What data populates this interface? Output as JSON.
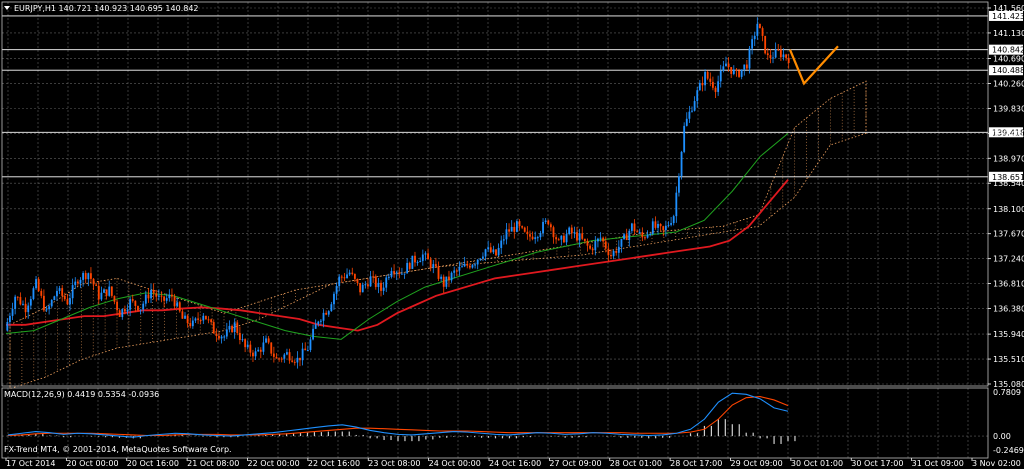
{
  "header": {
    "symbol_line": "EURJPY,H1  140.721 140.923 140.695 140.842",
    "macd_line": "MACD(12,26,9) 0.4419 0.5354 -0.0936",
    "copyright": "FX-Trend MT4, © 2001-2014, MetaQuotes Software Corp."
  },
  "colors": {
    "background": "#000000",
    "grid": "#606060",
    "bull": "#1E90FF",
    "bear": "#FF4500",
    "ma_slow": "#E0191F",
    "ma_fast": "#1FA31F",
    "cloud": "#F4A460",
    "forecast": "#FF8C00",
    "hline": "#FFFFFF"
  },
  "chart_data": [
    {
      "type": "candlestick",
      "ylim": [
        135.08,
        141.56
      ],
      "y_ticks": [
        141.56,
        141.13,
        140.69,
        140.26,
        139.83,
        139.4,
        138.97,
        138.54,
        138.1,
        137.67,
        137.24,
        136.81,
        136.38,
        135.94,
        135.51,
        135.08
      ],
      "x_tick_labels": [
        "17 Oct 2014",
        "20 Oct 00:00",
        "20 Oct 16:00",
        "21 Oct 08:00",
        "22 Oct 00:00",
        "22 Oct 16:00",
        "23 Oct 08:00",
        "24 Oct 00:00",
        "24 Oct 16:00",
        "27 Oct 09:00",
        "28 Oct 01:00",
        "28 Oct 17:00",
        "29 Oct 09:00",
        "30 Oct 01:00",
        "30 Oct 17:00",
        "31 Oct 09:00",
        "3 Nov 02:00"
      ],
      "horizontal_levels": [
        141.423,
        140.842,
        140.488,
        139.418,
        138.651
      ],
      "price_path": [
        136.0,
        136.6,
        136.4,
        136.8,
        136.3,
        136.7,
        136.5,
        136.9,
        137.0,
        136.6,
        136.7,
        136.3,
        136.5,
        136.4,
        136.7,
        136.5,
        136.6,
        136.2,
        136.1,
        136.3,
        136.0,
        135.9,
        136.1,
        135.7,
        135.6,
        135.8,
        135.5,
        135.6,
        135.5,
        135.7,
        136.2,
        136.4,
        136.9,
        137.0,
        136.7,
        136.9,
        136.7,
        137.1,
        137.0,
        137.2,
        137.3,
        137.1,
        136.8,
        137.0,
        137.1,
        137.2,
        137.4,
        137.3,
        137.7,
        137.8,
        137.6,
        137.7,
        137.9,
        137.5,
        137.7,
        137.6,
        137.4,
        137.6,
        137.3,
        137.5,
        137.8,
        137.6,
        137.8,
        137.7,
        138.0,
        139.5,
        140.0,
        140.4,
        140.2,
        140.6,
        140.4,
        140.6,
        141.3,
        140.7,
        140.8,
        140.7
      ],
      "ma_slow": [
        136.1,
        136.1,
        136.15,
        136.2,
        136.25,
        136.25,
        136.3,
        136.35,
        136.35,
        136.38,
        136.4,
        136.38,
        136.35,
        136.3,
        136.25,
        136.2,
        136.1,
        136.05,
        136.0,
        136.1,
        136.3,
        136.45,
        136.6,
        136.7,
        136.8,
        136.9,
        136.95,
        137.0,
        137.05,
        137.1,
        137.15,
        137.2,
        137.25,
        137.3,
        137.35,
        137.4,
        137.45,
        137.55,
        137.8,
        138.2,
        138.6
      ],
      "ma_fast": [
        135.95,
        136.0,
        136.2,
        136.4,
        136.55,
        136.65,
        136.6,
        136.45,
        136.3,
        136.15,
        136.0,
        135.9,
        135.85,
        136.2,
        136.5,
        136.75,
        136.9,
        137.05,
        137.2,
        137.35,
        137.45,
        137.55,
        137.6,
        137.65,
        137.7,
        137.9,
        138.4,
        139.0,
        139.4
      ],
      "ichimoku_cloud": {
        "upper": [
          136.1,
          136.4,
          136.8,
          136.9,
          136.7,
          136.5,
          136.3,
          136.5,
          136.7,
          136.8,
          136.9,
          137.0,
          137.1,
          137.2,
          137.3,
          137.4,
          137.5,
          137.6,
          137.7,
          137.75,
          137.8,
          138.0,
          139.5,
          140.0,
          140.3
        ],
        "lower": [
          135.0,
          135.2,
          135.5,
          135.7,
          135.8,
          135.9,
          136.0,
          136.2,
          136.5,
          136.8,
          136.9,
          137.0,
          137.1,
          137.15,
          137.2,
          137.25,
          137.3,
          137.4,
          137.5,
          137.6,
          137.7,
          137.8,
          138.3,
          139.2,
          139.4
        ]
      },
      "forecast_path": [
        140.842,
        140.26,
        140.9
      ]
    },
    {
      "type": "macd",
      "ylim": [
        -0.2469,
        0.7809
      ],
      "y_ticks": [
        0.7809,
        0.0,
        -0.2469
      ],
      "macd_values": [
        0.02,
        0.05,
        0.08,
        0.06,
        0.03,
        0.05,
        0.04,
        0.02,
        0.0,
        -0.02,
        0.01,
        0.03,
        0.05,
        0.04,
        0.02,
        0.01,
        0.0,
        0.02,
        0.04,
        0.06,
        0.09,
        0.12,
        0.15,
        0.18,
        0.2,
        0.16,
        0.1,
        0.06,
        0.03,
        0.02,
        0.04,
        0.06,
        0.08,
        0.07,
        0.05,
        0.03,
        0.02,
        0.04,
        0.06,
        0.05,
        0.03,
        0.04,
        0.06,
        0.05,
        0.03,
        0.02,
        0.01,
        0.02,
        0.05,
        0.12,
        0.3,
        0.6,
        0.76,
        0.74,
        0.66,
        0.5,
        0.44
      ],
      "signal_values": [
        0.01,
        0.02,
        0.04,
        0.05,
        0.05,
        0.05,
        0.05,
        0.04,
        0.03,
        0.02,
        0.01,
        0.01,
        0.02,
        0.03,
        0.03,
        0.03,
        0.02,
        0.02,
        0.02,
        0.03,
        0.04,
        0.06,
        0.08,
        0.1,
        0.12,
        0.14,
        0.14,
        0.13,
        0.12,
        0.11,
        0.1,
        0.09,
        0.09,
        0.09,
        0.08,
        0.07,
        0.06,
        0.06,
        0.06,
        0.06,
        0.06,
        0.06,
        0.06,
        0.06,
        0.06,
        0.05,
        0.05,
        0.05,
        0.05,
        0.07,
        0.12,
        0.3,
        0.55,
        0.68,
        0.7,
        0.64,
        0.54
      ],
      "histogram": [
        0.01,
        0.03,
        0.04,
        0.01,
        -0.02,
        0.0,
        -0.01,
        -0.02,
        -0.03,
        -0.04,
        0.0,
        0.02,
        0.03,
        0.01,
        -0.01,
        -0.02,
        -0.02,
        0.0,
        0.02,
        0.03,
        0.05,
        0.06,
        0.07,
        0.08,
        0.08,
        0.02,
        -0.04,
        -0.07,
        -0.09,
        -0.09,
        -0.06,
        -0.03,
        -0.01,
        -0.02,
        -0.03,
        -0.04,
        -0.04,
        -0.02,
        0.0,
        -0.01,
        -0.03,
        -0.02,
        0.0,
        -0.01,
        -0.03,
        -0.03,
        -0.04,
        -0.03,
        0.0,
        0.05,
        0.18,
        0.3,
        0.21,
        0.06,
        -0.04,
        -0.14,
        -0.09
      ]
    }
  ]
}
